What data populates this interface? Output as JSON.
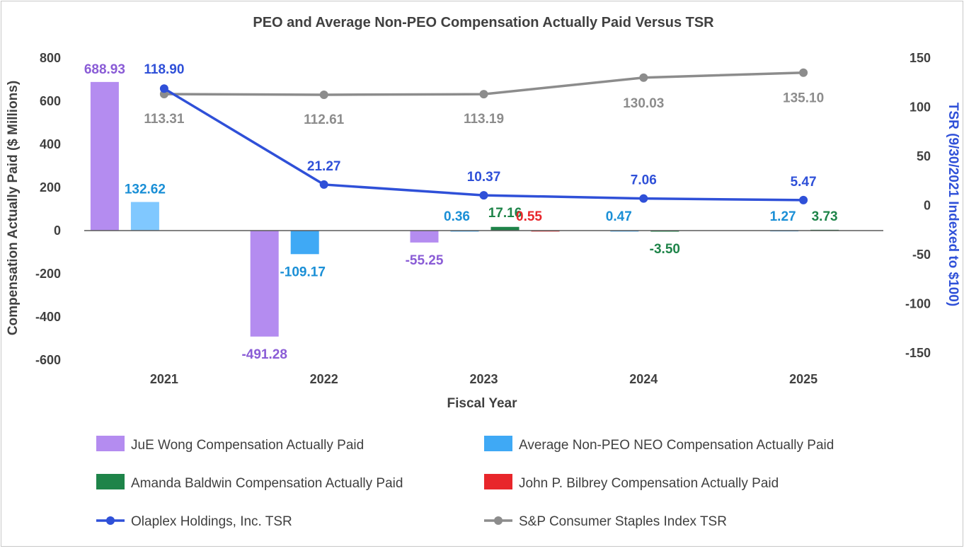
{
  "chart_data": {
    "type": "bar",
    "title": "PEO and Average Non-PEO Compensation Actually Paid Versus TSR",
    "xlabel": "Fiscal Year",
    "ylabel": "Compensation Actually Paid ($ Millions)",
    "y2label": "TSR (9/30/2021 Indexed to $100)",
    "categories": [
      "2021",
      "2022",
      "2023",
      "2024",
      "2025"
    ],
    "ylim": [
      -600,
      800
    ],
    "yticks": [
      "800",
      "600",
      "400",
      "200",
      "0",
      "-200",
      "-400",
      "-600"
    ],
    "y2lim": [
      -150,
      150
    ],
    "y2ticks": [
      "150",
      "100",
      "50",
      "0",
      "-50",
      "-100",
      "-150"
    ],
    "grid": false,
    "legend_position": "bottom",
    "bar_series": [
      {
        "name": "JuE Wong Compensation Actually Paid",
        "color": "#b48cf0",
        "label_color": "#8a5cd6",
        "slot": 0,
        "values": [
          688.93,
          -491.28,
          -55.25,
          null,
          null
        ],
        "labels": [
          "688.93",
          "-491.28",
          "-55.25",
          "",
          ""
        ]
      },
      {
        "name": "Average Non-PEO NEO Compensation Actually Paid",
        "color": "#3fa9f5",
        "label_color": "#1a8fd6",
        "slot": 1,
        "values": [
          132.62,
          -109.17,
          0.36,
          0.47,
          1.27
        ],
        "labels": [
          "132.62",
          "-109.17",
          "0.36",
          "0.47",
          "1.27"
        ],
        "fill_colors": [
          "#80c8ff",
          "#3fa9f5",
          "#3fa9f5",
          "#3fa9f5",
          "#3fa9f5"
        ]
      },
      {
        "name": "Amanda Baldwin Compensation Actually Paid",
        "color": "#1e8449",
        "label_color": "#1e8449",
        "slot": 2,
        "values": [
          null,
          null,
          17.16,
          -3.5,
          3.73
        ],
        "labels": [
          "",
          "",
          "17.16",
          "-3.50",
          "3.73"
        ]
      },
      {
        "name": "John P. Bilbrey Compensation Actually Paid",
        "color": "#e8262b",
        "label_color": "#e8262b",
        "slot": 3,
        "values": [
          null,
          null,
          0.55,
          null,
          null
        ],
        "labels": [
          "",
          "",
          "0.55",
          "",
          ""
        ]
      }
    ],
    "line_series": [
      {
        "name": "Olaplex Holdings, Inc. TSR",
        "color": "#2f50d8",
        "label_color": "#2f50d8",
        "axis": "right",
        "values": [
          118.9,
          21.27,
          10.37,
          7.06,
          5.47
        ],
        "labels": [
          "118.90",
          "21.27",
          "10.37",
          "7.06",
          "5.47"
        ]
      },
      {
        "name": "S&P Consumer Staples Index TSR",
        "color": "#8c8c8c",
        "label_color": "#8c8c8c",
        "axis": "right",
        "values": [
          113.31,
          112.61,
          113.19,
          130.03,
          135.1
        ],
        "labels": [
          "113.31",
          "112.61",
          "113.19",
          "130.03",
          "135.10"
        ]
      }
    ]
  }
}
